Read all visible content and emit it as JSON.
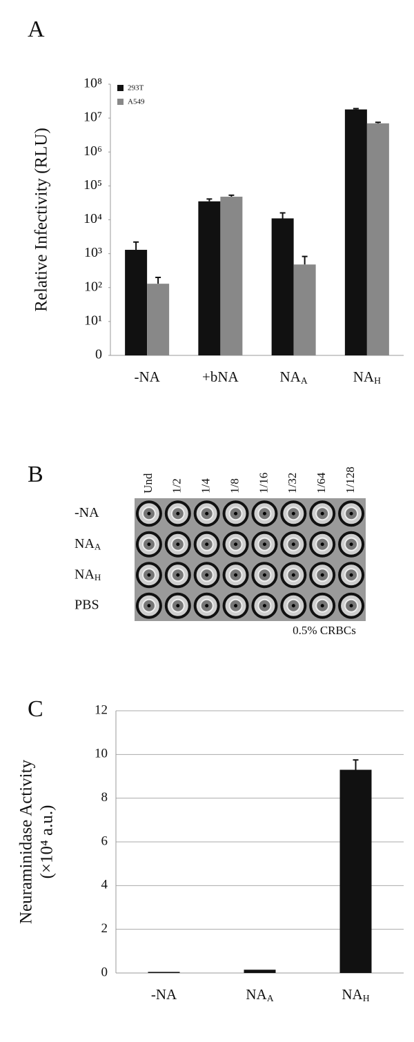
{
  "chart_data": [
    {
      "type": "bar",
      "panel_label": "A",
      "ylabel": [
        "Relative Infectivity (RLU)"
      ],
      "categories": [
        "-NA",
        "+bNA",
        "NA_A",
        "NA_H"
      ],
      "log_scale": true,
      "grid": false,
      "legend": "top-left",
      "series": [
        {
          "name": "293T",
          "color": "#111111",
          "values": [
            1300,
            35000,
            11000,
            18000000
          ],
          "errors": [
            900,
            6000,
            5000,
            1000000
          ]
        },
        {
          "name": "A549",
          "color": "#888888",
          "values": [
            130,
            48000,
            480,
            7000000
          ],
          "errors": [
            70,
            5000,
            350,
            500000
          ]
        }
      ],
      "ylim": [
        1,
        100000000
      ],
      "yticks": [
        {
          "value": 1,
          "label": "0"
        },
        {
          "value": 10,
          "label": "10¹"
        },
        {
          "value": 100,
          "label": "10²"
        },
        {
          "value": 1000,
          "label": "10³"
        },
        {
          "value": 10000,
          "label": "10⁴"
        },
        {
          "value": 100000,
          "label": "10⁵"
        },
        {
          "value": 1000000,
          "label": "10⁶"
        },
        {
          "value": 10000000,
          "label": "10⁷"
        },
        {
          "value": 100000000,
          "label": "10⁸"
        }
      ]
    },
    {
      "type": "bar",
      "panel_label": "C",
      "ylabel": [
        "Neuraminidase Activity",
        "(×10⁴ a.u.)"
      ],
      "categories": [
        "-NA",
        "NA_A",
        "NA_H"
      ],
      "log_scale": false,
      "grid": true,
      "series": [
        {
          "color": "#111111",
          "values": [
            0.05,
            0.15,
            9.3
          ],
          "errors": [
            null,
            null,
            0.45
          ]
        }
      ],
      "ylim": [
        0,
        12
      ],
      "yticks": [
        0,
        2,
        4,
        6,
        8,
        10,
        12
      ]
    }
  ],
  "plate": {
    "panel_label": "B",
    "columns": [
      "Und",
      "1/2",
      "1/4",
      "1/8",
      "1/16",
      "1/32",
      "1/64",
      "1/128"
    ],
    "rows": [
      "-NA",
      "NA_A",
      "NA_H",
      "PBS"
    ],
    "caption": "0.5% CRBCs"
  }
}
